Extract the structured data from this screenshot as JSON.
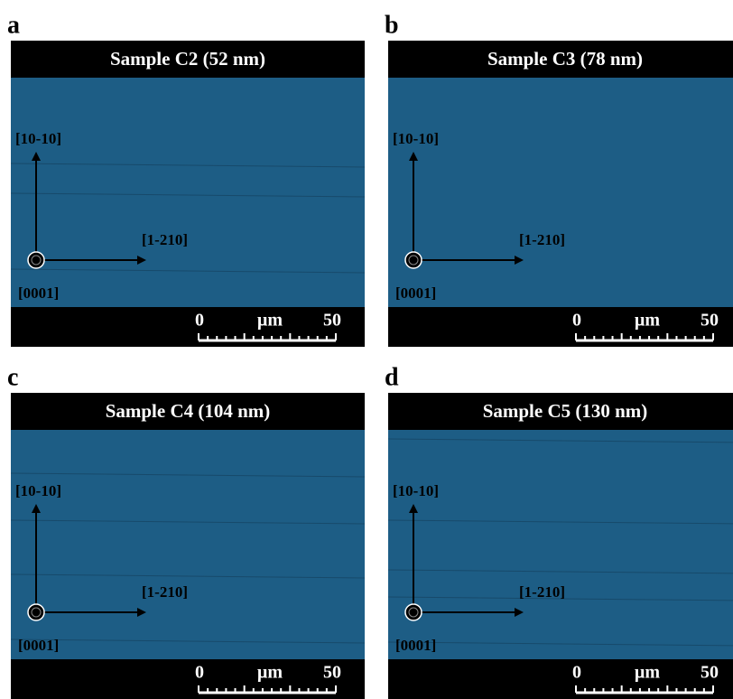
{
  "panels": [
    {
      "letter": "a",
      "title": "Sample C2 (52 nm)",
      "axes": {
        "vertical": "[10-10]",
        "horizontal": "[1-210]",
        "normal": "[0001]"
      },
      "scale_bar": {
        "start": "0",
        "unit": "µm",
        "end": "50"
      }
    },
    {
      "letter": "b",
      "title": "Sample C3 (78 nm)",
      "axes": {
        "vertical": "[10-10]",
        "horizontal": "[1-210]",
        "normal": "[0001]"
      },
      "scale_bar": {
        "start": "0",
        "unit": "µm",
        "end": "50"
      }
    },
    {
      "letter": "c",
      "title": "Sample C4 (104 nm)",
      "axes": {
        "vertical": "[10-10]",
        "horizontal": "[1-210]",
        "normal": "[0001]"
      },
      "scale_bar": {
        "start": "0",
        "unit": "µm",
        "end": "50"
      }
    },
    {
      "letter": "d",
      "title": "Sample C5 (130 nm)",
      "axes": {
        "vertical": "[10-10]",
        "horizontal": "[1-210]",
        "normal": "[0001]"
      },
      "scale_bar": {
        "start": "0",
        "unit": "µm",
        "end": "50"
      }
    }
  ]
}
